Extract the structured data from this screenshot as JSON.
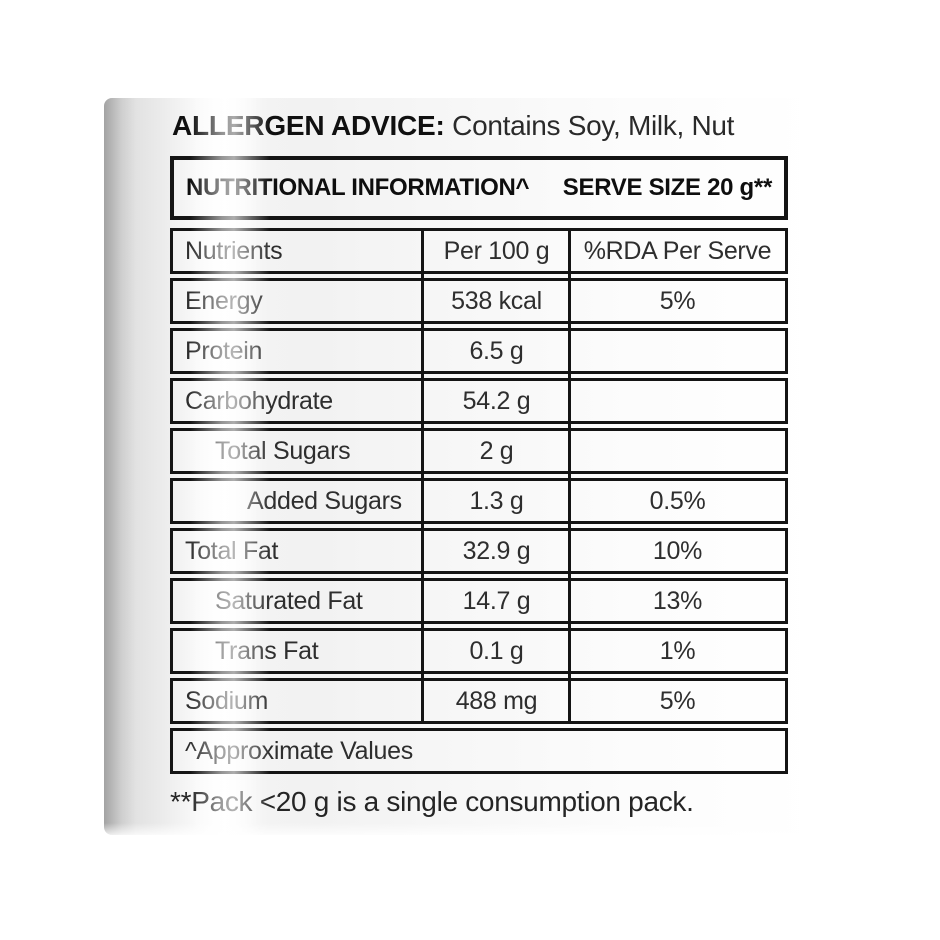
{
  "allergen": {
    "label": "ALLERGEN ADVICE:",
    "text": " Contains Soy, Milk, Nut"
  },
  "table": {
    "title": "NUTRITIONAL INFORMATION^",
    "serve_size": "SERVE SIZE 20 g**",
    "columns": [
      "Nutrients",
      "Per 100 g",
      "%RDA Per Serve"
    ],
    "rows": [
      {
        "nutrient": "Energy",
        "per_100g": "538 kcal",
        "rda_per_serve": "5%",
        "indent": 0
      },
      {
        "nutrient": "Protein",
        "per_100g": "6.5 g",
        "rda_per_serve": "",
        "indent": 0
      },
      {
        "nutrient": "Carbohydrate",
        "per_100g": "54.2 g",
        "rda_per_serve": "",
        "indent": 0
      },
      {
        "nutrient": "Total Sugars",
        "per_100g": "2 g",
        "rda_per_serve": "",
        "indent": 1
      },
      {
        "nutrient": "Added Sugars",
        "per_100g": "1.3 g",
        "rda_per_serve": "0.5%",
        "indent": 2
      },
      {
        "nutrient": "Total Fat",
        "per_100g": "32.9 g",
        "rda_per_serve": "10%",
        "indent": 0
      },
      {
        "nutrient": "Saturated Fat",
        "per_100g": "14.7 g",
        "rda_per_serve": "13%",
        "indent": 1
      },
      {
        "nutrient": "Trans Fat",
        "per_100g": "0.1 g",
        "rda_per_serve": "1%",
        "indent": 1
      },
      {
        "nutrient": "Sodium",
        "per_100g": "488 mg",
        "rda_per_serve": "5%",
        "indent": 0
      }
    ],
    "footnote": "^Approximate Values"
  },
  "pack_note": "**Pack <20 g is a single consumption pack.",
  "colors": {
    "border": "#141414",
    "text": "#2e2e2e",
    "background": "#ffffff"
  }
}
